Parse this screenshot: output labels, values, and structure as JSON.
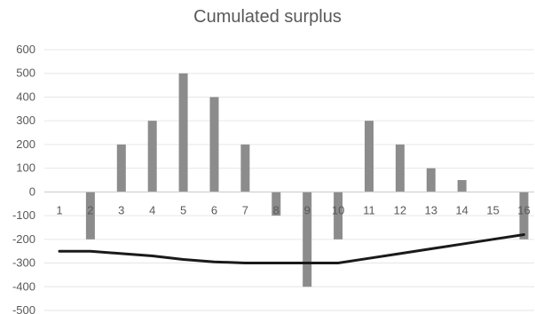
{
  "chart_data": {
    "type": "bar",
    "title": "Cumulated surplus",
    "xlabel": "",
    "ylabel": "",
    "categories": [
      "1",
      "2",
      "3",
      "4",
      "5",
      "6",
      "7",
      "8",
      "9",
      "10",
      "11",
      "12",
      "13",
      "14",
      "15",
      "16"
    ],
    "series": [
      {
        "type": "bar",
        "values": [
          0,
          -200,
          200,
          300,
          500,
          400,
          200,
          -100,
          -400,
          -200,
          300,
          200,
          100,
          50,
          0,
          -200
        ]
      },
      {
        "type": "line",
        "values": [
          -250,
          -250,
          -260,
          -270,
          -285,
          -295,
          -300,
          -300,
          -300,
          -300,
          -280,
          -260,
          -240,
          -220,
          -200,
          -180
        ]
      }
    ],
    "ylim": [
      -500,
      600
    ],
    "yticks": [
      600,
      500,
      400,
      300,
      200,
      100,
      0,
      -100,
      -200,
      -300,
      -400,
      -500
    ],
    "grid": true,
    "legend": "none",
    "colors": {
      "bar": "#8c8c8c",
      "line": "#1a1a1a",
      "grid": "#e6e6e6",
      "axis": "#c8c8c8",
      "text": "#595959"
    }
  }
}
